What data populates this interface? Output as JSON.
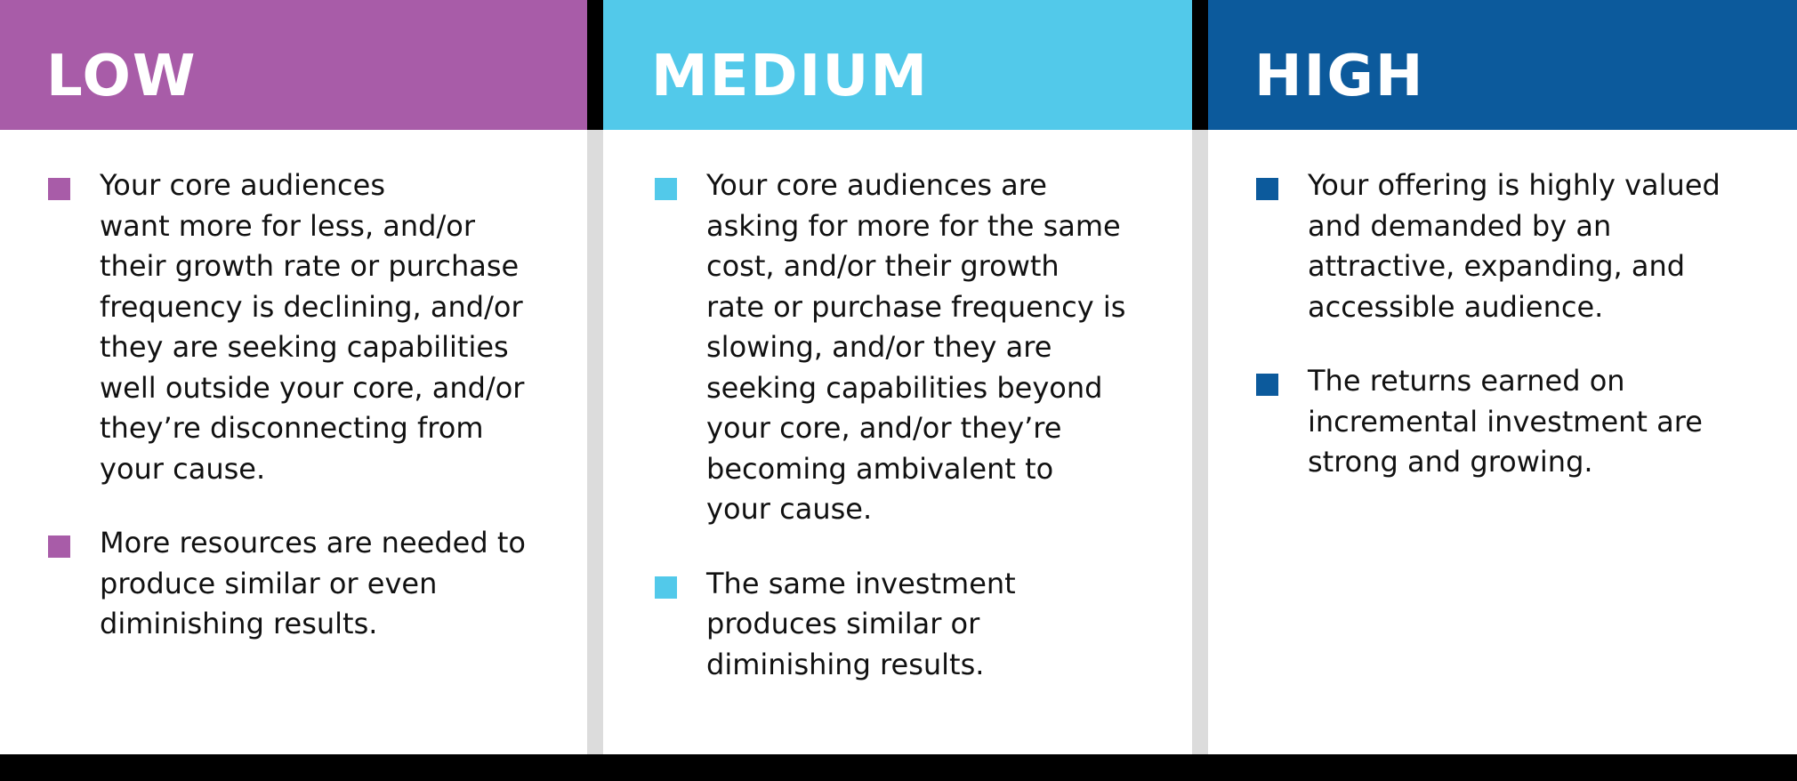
{
  "colors": {
    "low": "#a85ca8",
    "medium": "#52c9ea",
    "high": "#0c5a9c"
  },
  "panels": [
    {
      "key": "low",
      "title": "LOW",
      "bullets": [
        "Your core audiences\nwant more for less, and/or\ntheir growth rate or purchase\nfrequency is declining, and/or\nthey are seeking capabilities\nwell outside your core, and/or\nthey’re disconnecting from\nyour cause.",
        "More resources are needed to\nproduce similar or even\ndiminishing results."
      ]
    },
    {
      "key": "medium",
      "title": "MEDIUM",
      "bullets": [
        "Your core audiences are\nasking for more for the same\ncost, and/or their growth\nrate or purchase frequency is\nslowing, and/or they are\nseeking capabilities beyond\nyour core, and/or they’re\nbecoming ambivalent to\nyour cause.",
        "The same investment\nproduces similar or\ndiminishing results."
      ]
    },
    {
      "key": "high",
      "title": "HIGH",
      "bullets": [
        "Your offering is highly valued\nand demanded by an\nattractive, expanding, and\naccessible audience.",
        "The returns earned on\nincremental investment are\nstrong and growing."
      ]
    }
  ]
}
